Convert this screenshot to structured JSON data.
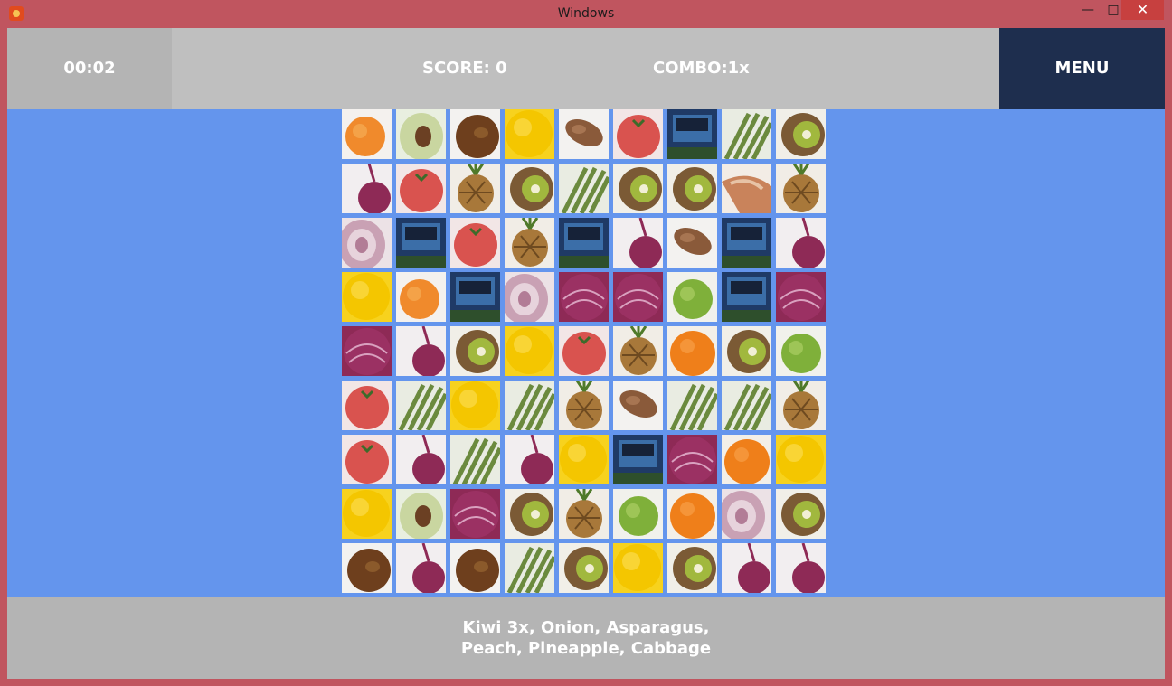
{
  "window": {
    "title": "Windows",
    "minimize": "—",
    "maximize": "□",
    "close": "✕"
  },
  "hud": {
    "timer": "00:02",
    "score": "SCORE:  0",
    "combo": "COMBO:1x",
    "menu": "MENU"
  },
  "goal": {
    "line1": "Kiwi 3x, Onion, Asparagus,",
    "line2": "Peach, Pineapple, Cabbage"
  },
  "colors": {
    "chrome": "#c0555f",
    "board_bg": "#6495ed",
    "hud_bg": "#bfbfbf",
    "menu_bg": "#1e2e4e"
  },
  "board": {
    "rows": 9,
    "cols": 9,
    "tiles": [
      [
        "peach",
        "apple-half",
        "coconut",
        "lemon",
        "pecan",
        "tomato",
        "truck",
        "asparagus",
        "kiwi"
      ],
      [
        "onion",
        "tomato",
        "pineapple",
        "kiwi",
        "asparagus",
        "kiwi",
        "kiwi",
        "pear-slice",
        "pineapple"
      ],
      [
        "onion-half",
        "truck",
        "tomato",
        "pineapple",
        "truck",
        "onion",
        "pecan",
        "truck",
        "onion"
      ],
      [
        "lemon",
        "peach",
        "truck",
        "onion-half",
        "cabbage",
        "cabbage",
        "apple",
        "truck",
        "cabbage"
      ],
      [
        "cabbage",
        "onion",
        "kiwi",
        "lemon",
        "tomato",
        "pineapple",
        "orange",
        "kiwi",
        "apple"
      ],
      [
        "tomato",
        "asparagus",
        "lemon",
        "asparagus",
        "pineapple",
        "pecan",
        "asparagus",
        "asparagus",
        "pineapple"
      ],
      [
        "tomato",
        "onion",
        "asparagus",
        "onion",
        "lemon",
        "truck",
        "cabbage",
        "orange",
        "lemon"
      ],
      [
        "lemon",
        "apple-half",
        "cabbage",
        "kiwi",
        "pineapple",
        "apple",
        "orange",
        "onion-half",
        "kiwi"
      ],
      [
        "coconut",
        "onion",
        "coconut",
        "asparagus",
        "kiwi",
        "lemon",
        "kiwi",
        "onion",
        "onion"
      ]
    ]
  }
}
